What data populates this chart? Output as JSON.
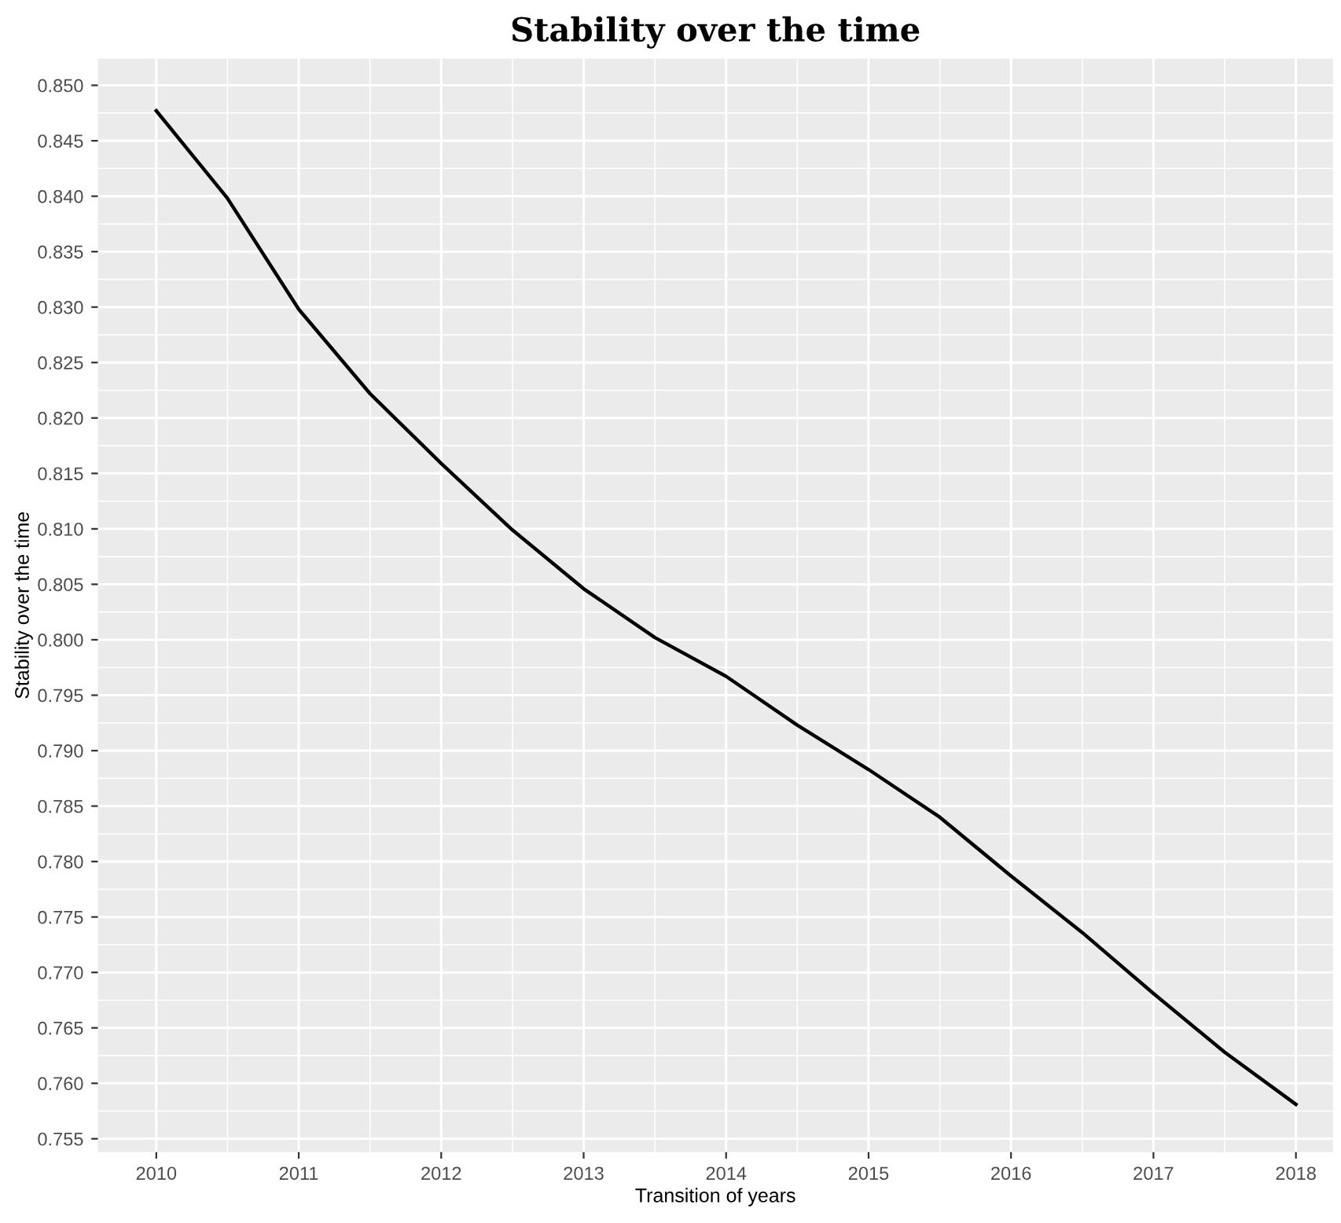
{
  "chart_data": {
    "type": "line",
    "title": "Stability over the time",
    "xlabel": "Transition of years",
    "ylabel": "Stability over the time",
    "x": [
      2010,
      2010.5,
      2011,
      2011.5,
      2012,
      2012.5,
      2013,
      2013.5,
      2014,
      2014.5,
      2015,
      2015.5,
      2016,
      2016.5,
      2017,
      2017.5,
      2018
    ],
    "series": [
      {
        "color": "#000000",
        "values": [
          0.8477,
          0.8398,
          0.8298,
          0.8222,
          0.8159,
          0.8099,
          0.8046,
          0.8002,
          0.7967,
          0.7923,
          0.7883,
          0.784,
          0.7787,
          0.7736,
          0.7681,
          0.7628,
          0.7581
        ]
      }
    ],
    "xlim": [
      2009.59,
      2018.26
    ],
    "ylim": [
      0.7538,
      0.8524
    ],
    "xticks": [
      2010,
      2011,
      2012,
      2013,
      2014,
      2015,
      2016,
      2017,
      2018
    ],
    "yticks": [
      {
        "value": 0.755,
        "label": "0.755"
      },
      {
        "value": 0.76,
        "label": "0.760"
      },
      {
        "value": 0.765,
        "label": "0.765"
      },
      {
        "value": 0.77,
        "label": "0.770"
      },
      {
        "value": 0.775,
        "label": "0.775"
      },
      {
        "value": 0.78,
        "label": "0.780"
      },
      {
        "value": 0.785,
        "label": "0.785"
      },
      {
        "value": 0.79,
        "label": "0.790"
      },
      {
        "value": 0.795,
        "label": "0.795"
      },
      {
        "value": 0.8,
        "label": "0.800"
      },
      {
        "value": 0.805,
        "label": "0.805"
      },
      {
        "value": 0.81,
        "label": "0.810"
      },
      {
        "value": 0.815,
        "label": "0.815"
      },
      {
        "value": 0.82,
        "label": "0.820"
      },
      {
        "value": 0.825,
        "label": "0.825"
      },
      {
        "value": 0.83,
        "label": "0.830"
      },
      {
        "value": 0.835,
        "label": "0.835"
      },
      {
        "value": 0.84,
        "label": "0.840"
      },
      {
        "value": 0.845,
        "label": "0.845"
      },
      {
        "value": 0.85,
        "label": "0.850"
      }
    ],
    "grid": true,
    "line_style": "solid"
  }
}
